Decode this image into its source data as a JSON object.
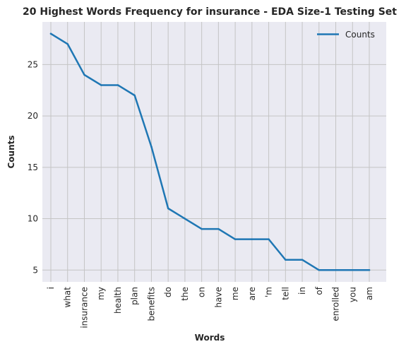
{
  "chart_data": {
    "type": "line",
    "title": "20 Highest Words Frequency for insurance - EDA Size-1 Testing Set",
    "xlabel": "Words",
    "ylabel": "Counts",
    "categories": [
      "i",
      "what",
      "insurance",
      "my",
      "health",
      "plan",
      "benefits",
      "do",
      "the",
      "on",
      "have",
      "me",
      "are",
      "'m",
      "tell",
      "in",
      "of",
      "enrolled",
      "you",
      "am"
    ],
    "series": [
      {
        "name": "Counts",
        "values": [
          28,
          27,
          24,
          23,
          23,
          22,
          17,
          11,
          10,
          9,
          9,
          8,
          8,
          8,
          6,
          6,
          5,
          5,
          5,
          5
        ],
        "color": "#1f77b4"
      }
    ],
    "yticks": [
      5,
      10,
      15,
      20,
      25
    ],
    "ylim": [
      3.85,
      29.15
    ],
    "grid": true,
    "legend_position": "top-right",
    "background_color": "#eaeaf2",
    "grid_color": "#c4c4c4"
  }
}
